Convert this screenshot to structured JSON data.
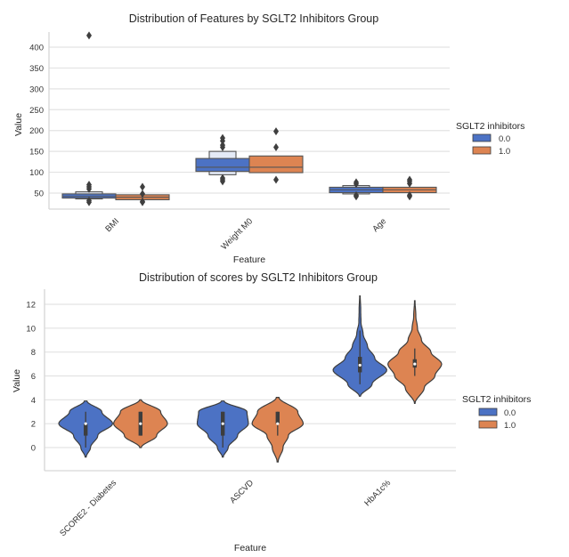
{
  "chart_data": [
    {
      "type": "boxen",
      "title": "Distribution of Features by SGLT2 Inhibitors Group",
      "xlabel": "Feature",
      "ylabel": "Value",
      "ylim": [
        10,
        440
      ],
      "yticks": [
        50,
        100,
        150,
        200,
        250,
        300,
        350,
        400
      ],
      "grid": true,
      "categories": [
        "BMI",
        "Weight M0",
        "Age"
      ],
      "legend": {
        "title": "SGLT2 inhibitors",
        "placement": "right",
        "entries": [
          "0.0",
          "1.0"
        ]
      },
      "series": [
        {
          "name": "0.0",
          "color": "#4c72c4",
          "boxes": [
            {
              "category": "BMI",
              "levels": [
                [
                  38,
                  48
                ],
                [
                  36,
                  53
                ]
              ],
              "median": 42,
              "outliers": [
                28,
                32,
                60,
                65,
                70,
                428
              ]
            },
            {
              "category": "Weight M0",
              "levels": [
                [
                  102,
                  133
                ],
                [
                  94,
                  150
                ]
              ],
              "median": 112,
              "outliers": [
                78,
                82,
                86,
                160,
                165,
                175,
                182
              ]
            },
            {
              "category": "Age",
              "levels": [
                [
                  51,
                  64
                ],
                [
                  48,
                  68
                ]
              ],
              "median": 58,
              "outliers": [
                42,
                45,
                72,
                76
              ]
            }
          ]
        },
        {
          "name": "1.0",
          "color": "#dd8452",
          "boxes": [
            {
              "category": "BMI",
              "levels": [
                [
                  34,
                  46
                ]
              ],
              "median": 40,
              "outliers": [
                28,
                30,
                48,
                65
              ]
            },
            {
              "category": "Weight M0",
              "levels": [
                [
                  99,
                  139
                ]
              ],
              "median": 112,
              "outliers": [
                82,
                160,
                198
              ]
            },
            {
              "category": "Age",
              "levels": [
                [
                  51,
                  64
                ]
              ],
              "median": 58,
              "outliers": [
                42,
                45,
                73,
                78,
                82
              ]
            }
          ]
        }
      ]
    },
    {
      "type": "violin",
      "title": "Distribution of scores by SGLT2 Inhibitors Group",
      "xlabel": "Feature",
      "ylabel": "Value",
      "ylim": [
        -1.9,
        13.2
      ],
      "yticks": [
        0,
        2,
        4,
        6,
        8,
        10,
        12
      ],
      "grid": true,
      "categories": [
        "SCORE2 - Diabetes",
        "ASCVD",
        "HbA1c%"
      ],
      "legend": {
        "title": "SGLT2 inhibitors",
        "placement": "right",
        "entries": [
          "0.0",
          "1.0"
        ]
      },
      "series": [
        {
          "name": "0.0",
          "color": "#4c72c4",
          "violins": [
            {
              "category": "SCORE2 - Diabetes",
              "min": -0.8,
              "max": 3.9,
              "q1": 1.0,
              "median": 2.0,
              "q3": 2.0,
              "whisker": [
                0,
                3
              ],
              "profile": [
                [
                  -0.8,
                  0.02
                ],
                [
                  0,
                  0.18
                ],
                [
                  1.0,
                  0.45
                ],
                [
                  2.0,
                  1.0
                ],
                [
                  3.0,
                  0.6
                ],
                [
                  3.9,
                  0.05
                ]
              ]
            },
            {
              "category": "ASCVD",
              "min": -0.8,
              "max": 3.9,
              "q1": 1.0,
              "median": 2.0,
              "q3": 3.0,
              "whisker": [
                0,
                3
              ],
              "profile": [
                [
                  -0.8,
                  0.02
                ],
                [
                  0,
                  0.2
                ],
                [
                  1.0,
                  0.55
                ],
                [
                  2.0,
                  0.95
                ],
                [
                  3.0,
                  0.9
                ],
                [
                  3.9,
                  0.05
                ]
              ]
            },
            {
              "category": "HbA1c%",
              "min": 4.3,
              "max": 12.7,
              "q1": 6.3,
              "median": 6.9,
              "q3": 7.6,
              "whisker": [
                5.3,
                9.8
              ],
              "profile": [
                [
                  4.3,
                  0.02
                ],
                [
                  5.3,
                  0.45
                ],
                [
                  6.5,
                  1.0
                ],
                [
                  7.5,
                  0.55
                ],
                [
                  8.5,
                  0.28
                ],
                [
                  9.5,
                  0.12
                ],
                [
                  10.5,
                  0.04
                ],
                [
                  11.5,
                  0.03
                ],
                [
                  12.7,
                  0.01
                ]
              ]
            }
          ]
        },
        {
          "name": "1.0",
          "color": "#dd8452",
          "violins": [
            {
              "category": "SCORE2 - Diabetes",
              "min": 0,
              "max": 4.0,
              "q1": 1.0,
              "median": 2.0,
              "q3": 3.0,
              "whisker": [
                1,
                3
              ],
              "profile": [
                [
                  0,
                  0.03
                ],
                [
                  1.0,
                  0.6
                ],
                [
                  2.0,
                  1.0
                ],
                [
                  3.0,
                  0.75
                ],
                [
                  4.0,
                  0.03
                ]
              ]
            },
            {
              "category": "ASCVD",
              "min": -1.2,
              "max": 4.2,
              "q1": 2.0,
              "median": 2.0,
              "q3": 3.0,
              "whisker": [
                1,
                3
              ],
              "profile": [
                [
                  -1.2,
                  0.02
                ],
                [
                  0,
                  0.2
                ],
                [
                  1.0,
                  0.4
                ],
                [
                  2.0,
                  0.95
                ],
                [
                  3.0,
                  0.75
                ],
                [
                  4.2,
                  0.05
                ]
              ]
            },
            {
              "category": "HbA1c%",
              "min": 3.7,
              "max": 12.3,
              "q1": 6.7,
              "median": 7.0,
              "q3": 7.4,
              "whisker": [
                6.0,
                8.3
              ],
              "profile": [
                [
                  3.7,
                  0.01
                ],
                [
                  5.0,
                  0.35
                ],
                [
                  6.0,
                  0.75
                ],
                [
                  7.0,
                  1.0
                ],
                [
                  8.0,
                  0.6
                ],
                [
                  9.0,
                  0.25
                ],
                [
                  10.0,
                  0.1
                ],
                [
                  11.0,
                  0.04
                ],
                [
                  12.3,
                  0.01
                ]
              ]
            }
          ]
        }
      ]
    }
  ]
}
